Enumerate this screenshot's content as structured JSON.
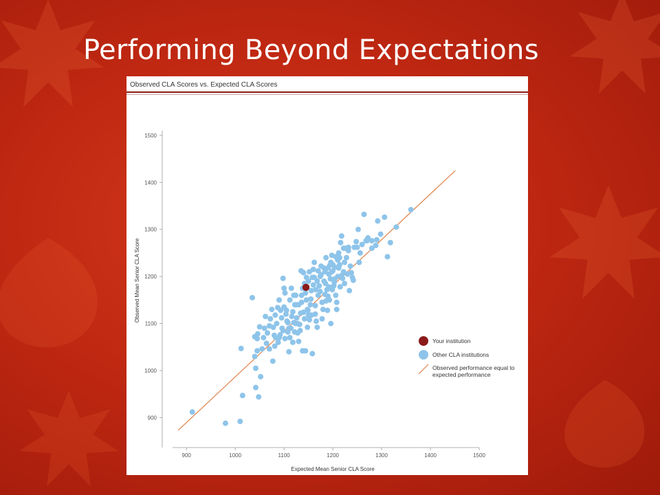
{
  "slide": {
    "title": "Performing Beyond Expectations"
  },
  "colors": {
    "background": "#c02812",
    "institution": "#8b1a1a",
    "others": "#8ec4ea",
    "line": "#e0824a",
    "header_rule": "#8b1a1a"
  },
  "chart_data": {
    "type": "scatter",
    "title": "Observed CLA Scores vs. Expected CLA Scores",
    "xlabel": "Expected Mean Senior CLA Score",
    "ylabel": "Observed Mean Senior CLA Score",
    "xlim": [
      880,
      1500
    ],
    "ylim": [
      870,
      1510
    ],
    "xticks": [
      900,
      1000,
      1100,
      1200,
      1300,
      1400,
      1500
    ],
    "yticks": [
      900,
      1000,
      1100,
      1200,
      1300,
      1400,
      1500
    ],
    "grid": false,
    "legend_position": "right",
    "reference_line": {
      "name": "Observed performance equal to expected performance",
      "from": [
        883,
        873
      ],
      "to": [
        1451,
        1425
      ]
    },
    "legend": [
      {
        "label": "Your institution",
        "marker": "circle",
        "color": "#8b1a1a"
      },
      {
        "label": "Other CLA institutions",
        "marker": "circle",
        "color": "#8ec4ea"
      },
      {
        "label_lines": [
          "Observed performance equal to",
          "expected performance"
        ],
        "marker": "line",
        "color": "#e0824a"
      }
    ],
    "series": [
      {
        "name": "Your institution",
        "color": "#8b1a1a",
        "points": [
          [
            1145,
            1177
          ]
        ]
      },
      {
        "name": "Other CLA institutions",
        "color": "#8ec4ea",
        "points": [
          [
            912,
            912
          ],
          [
            980,
            888
          ],
          [
            1010,
            892
          ],
          [
            1015,
            947
          ],
          [
            1042,
            964
          ],
          [
            1048,
            944
          ],
          [
            1012,
            1047
          ],
          [
            1035,
            1155
          ],
          [
            1040,
            1072
          ],
          [
            1046,
            1078
          ],
          [
            1050,
            1093
          ],
          [
            1060,
            1090
          ],
          [
            1055,
            1046
          ],
          [
            1064,
            1058
          ],
          [
            1070,
            1046
          ],
          [
            1077,
            1020
          ],
          [
            1042,
            1005
          ],
          [
            1052,
            987
          ],
          [
            1040,
            1030
          ],
          [
            1045,
            1042
          ],
          [
            1080,
            1075
          ],
          [
            1083,
            1070
          ],
          [
            1085,
            1100
          ],
          [
            1087,
            1134
          ],
          [
            1093,
            1128
          ],
          [
            1096,
            1090
          ],
          [
            1098,
            1196
          ],
          [
            1100,
            1175
          ],
          [
            1102,
            1165
          ],
          [
            1104,
            1120
          ],
          [
            1106,
            1105
          ],
          [
            1108,
            1082
          ],
          [
            1110,
            1040
          ],
          [
            1112,
            1070
          ],
          [
            1114,
            1090
          ],
          [
            1116,
            1115
          ],
          [
            1118,
            1125
          ],
          [
            1120,
            1160
          ],
          [
            1122,
            1140
          ],
          [
            1124,
            1100
          ],
          [
            1126,
            1112
          ],
          [
            1128,
            1080
          ],
          [
            1130,
            1062
          ],
          [
            1132,
            1098
          ],
          [
            1134,
            1122
          ],
          [
            1136,
            1145
          ],
          [
            1138,
            1175
          ],
          [
            1140,
            1208
          ],
          [
            1135,
            1212
          ],
          [
            1142,
            1185
          ],
          [
            1144,
            1165
          ],
          [
            1146,
            1150
          ],
          [
            1148,
            1130
          ],
          [
            1150,
            1118
          ],
          [
            1152,
            1108
          ],
          [
            1154,
            1140
          ],
          [
            1156,
            1170
          ],
          [
            1158,
            1198
          ],
          [
            1160,
            1215
          ],
          [
            1162,
            1230
          ],
          [
            1164,
            1120
          ],
          [
            1166,
            1105
          ],
          [
            1168,
            1092
          ],
          [
            1170,
            1160
          ],
          [
            1172,
            1180
          ],
          [
            1174,
            1200
          ],
          [
            1176,
            1222
          ],
          [
            1178,
            1145
          ],
          [
            1180,
            1130
          ],
          [
            1182,
            1190
          ],
          [
            1184,
            1210
          ],
          [
            1186,
            1240
          ],
          [
            1188,
            1172
          ],
          [
            1190,
            1158
          ],
          [
            1192,
            1205
          ],
          [
            1194,
            1224
          ],
          [
            1196,
            1100
          ],
          [
            1198,
            1245
          ],
          [
            1200,
            1212
          ],
          [
            1202,
            1180
          ],
          [
            1204,
            1195
          ],
          [
            1206,
            1160
          ],
          [
            1208,
            1130
          ],
          [
            1210,
            1235
          ],
          [
            1212,
            1250
          ],
          [
            1214,
            1225
          ],
          [
            1216,
            1272
          ],
          [
            1218,
            1286
          ],
          [
            1220,
            1196
          ],
          [
            1222,
            1210
          ],
          [
            1224,
            1185
          ],
          [
            1226,
            1260
          ],
          [
            1228,
            1240
          ],
          [
            1230,
            1205
          ],
          [
            1232,
            1255
          ],
          [
            1234,
            1170
          ],
          [
            1236,
            1222
          ],
          [
            1240,
            1198
          ],
          [
            1244,
            1262
          ],
          [
            1248,
            1274
          ],
          [
            1252,
            1300
          ],
          [
            1256,
            1250
          ],
          [
            1260,
            1268
          ],
          [
            1264,
            1332
          ],
          [
            1268,
            1276
          ],
          [
            1272,
            1282
          ],
          [
            1280,
            1260
          ],
          [
            1288,
            1266
          ],
          [
            1292,
            1318
          ],
          [
            1298,
            1290
          ],
          [
            1306,
            1326
          ],
          [
            1312,
            1242
          ],
          [
            1318,
            1272
          ],
          [
            1330,
            1305
          ],
          [
            1360,
            1342
          ],
          [
            1090,
            1150
          ],
          [
            1095,
            1112
          ],
          [
            1100,
            1135
          ],
          [
            1105,
            1128
          ],
          [
            1058,
            1070
          ],
          [
            1066,
            1080
          ],
          [
            1072,
            1110
          ],
          [
            1078,
            1092
          ],
          [
            1082,
            1118
          ],
          [
            1088,
            1060
          ],
          [
            1092,
            1076
          ],
          [
            1075,
            1130
          ],
          [
            1081,
            1052
          ],
          [
            1115,
            1175
          ],
          [
            1120,
            1102
          ],
          [
            1125,
            1140
          ],
          [
            1138,
            1042
          ],
          [
            1144,
            1042
          ],
          [
            1158,
            1036
          ],
          [
            1150,
            1190
          ],
          [
            1160,
            1182
          ],
          [
            1170,
            1212
          ],
          [
            1185,
            1185
          ],
          [
            1195,
            1195
          ],
          [
            1200,
            1225
          ],
          [
            1206,
            1242
          ],
          [
            1212,
            1218
          ],
          [
            1218,
            1202
          ],
          [
            1224,
            1230
          ],
          [
            1232,
            1262
          ],
          [
            1238,
            1208
          ],
          [
            1242,
            1192
          ],
          [
            1250,
            1262
          ],
          [
            1254,
            1230
          ],
          [
            1270,
            1276
          ],
          [
            1280,
            1276
          ],
          [
            1290,
            1278
          ],
          [
            1110,
            1090
          ],
          [
            1118,
            1060
          ],
          [
            1128,
            1100
          ],
          [
            1133,
            1085
          ],
          [
            1142,
            1110
          ],
          [
            1149,
            1128
          ],
          [
            1155,
            1152
          ],
          [
            1165,
            1172
          ],
          [
            1178,
            1110
          ],
          [
            1184,
            1162
          ],
          [
            1189,
            1128
          ],
          [
            1193,
            1150
          ],
          [
            1199,
            1172
          ],
          [
            1203,
            1188
          ],
          [
            1208,
            1145
          ],
          [
            1215,
            1178
          ],
          [
            1062,
            1115
          ],
          [
            1070,
            1095
          ],
          [
            1098,
            1085
          ],
          [
            1102,
            1068
          ],
          [
            1108,
            1102
          ],
          [
            1122,
            1082
          ],
          [
            1130,
            1140
          ],
          [
            1136,
            1160
          ],
          [
            1146,
            1198
          ],
          [
            1152,
            1210
          ],
          [
            1162,
            1198
          ],
          [
            1168,
            1190
          ],
          [
            1176,
            1204
          ],
          [
            1182,
            1218
          ],
          [
            1190,
            1218
          ],
          [
            1196,
            1230
          ],
          [
            1045,
            1068
          ],
          [
            1090,
            1070
          ],
          [
            1112,
            1150
          ],
          [
            1124,
            1160
          ],
          [
            1140,
            1124
          ],
          [
            1148,
            1092
          ],
          [
            1156,
            1118
          ],
          [
            1164,
            1138
          ],
          [
            1174,
            1168
          ],
          [
            1186,
            1148
          ],
          [
            1192,
            1178
          ],
          [
            1198,
            1210
          ],
          [
            1204,
            1220
          ],
          [
            1210,
            1200
          ],
          [
            1214,
            1240
          ],
          [
            1222,
            1260
          ]
        ]
      }
    ]
  }
}
